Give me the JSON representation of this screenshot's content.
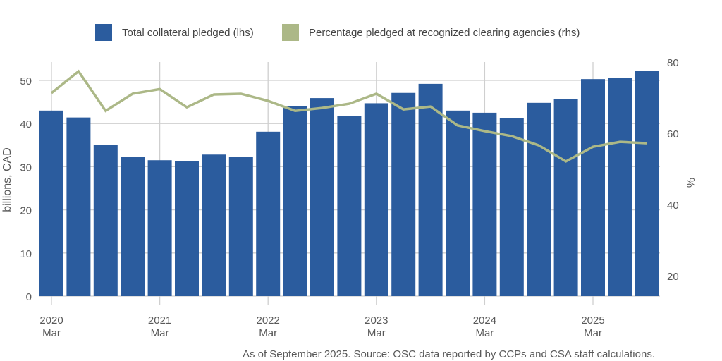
{
  "chart_data": {
    "type": "bar",
    "title": "",
    "legend": {
      "position": "top-center",
      "entries": [
        {
          "label": "Total collateral pledged (lhs)",
          "color": "#2b5c9e",
          "kind": "bar"
        },
        {
          "label": "Percentage pledged at recognized clearing agencies (rhs)",
          "color": "#acb887",
          "kind": "line"
        }
      ]
    },
    "x": [
      "2020 Q1",
      "2020 Q2",
      "2020 Q3",
      "2020 Q4",
      "2021 Q1",
      "2021 Q2",
      "2021 Q3",
      "2021 Q4",
      "2022 Q1",
      "2022 Q2",
      "2022 Q3",
      "2022 Q4",
      "2023 Q1",
      "2023 Q2",
      "2023 Q3",
      "2023 Q4",
      "2024 Q1",
      "2024 Q2",
      "2024 Q3",
      "2024 Q4",
      "2025 Q1",
      "2025 Q2",
      "2025 Q3"
    ],
    "x_ticks": [
      {
        "index": 0,
        "year": "2020",
        "month": "Mar"
      },
      {
        "index": 4,
        "year": "2021",
        "month": "Mar"
      },
      {
        "index": 8,
        "year": "2022",
        "month": "Mar"
      },
      {
        "index": 12,
        "year": "2023",
        "month": "Mar"
      },
      {
        "index": 16,
        "year": "2024",
        "month": "Mar"
      },
      {
        "index": 20,
        "year": "2025",
        "month": "Mar"
      }
    ],
    "series": [
      {
        "name": "Total collateral pledged (lhs)",
        "type": "bar",
        "axis": "left",
        "color": "#2b5c9e",
        "values": [
          43.0,
          41.4,
          35.0,
          32.2,
          31.5,
          31.3,
          32.8,
          32.2,
          38.1,
          44.0,
          45.9,
          41.8,
          44.7,
          47.1,
          49.2,
          43.0,
          42.5,
          41.2,
          44.8,
          45.6,
          50.3,
          50.5,
          52.2
        ]
      },
      {
        "name": "Percentage pledged at recognized clearing agencies (rhs)",
        "type": "line",
        "axis": "right",
        "color": "#acb887",
        "values": [
          71.3,
          77.4,
          66.3,
          71.1,
          72.4,
          67.3,
          70.9,
          71.1,
          69.1,
          66.3,
          67.1,
          68.3,
          71.1,
          66.7,
          67.5,
          62.2,
          60.6,
          59.2,
          56.6,
          52.1,
          56.2,
          57.6,
          57.2
        ]
      }
    ],
    "y_left": {
      "label": "billions, CAD",
      "ticks": [
        0,
        10,
        20,
        30,
        40,
        50
      ],
      "range": [
        0,
        55
      ]
    },
    "y_right": {
      "label": "%",
      "ticks": [
        20,
        40,
        60,
        80
      ],
      "range": [
        14.3,
        80
      ]
    },
    "grid": true,
    "footer": "As of September 2025. Source: OSC data reported by CCPs and CSA staff calculations."
  }
}
